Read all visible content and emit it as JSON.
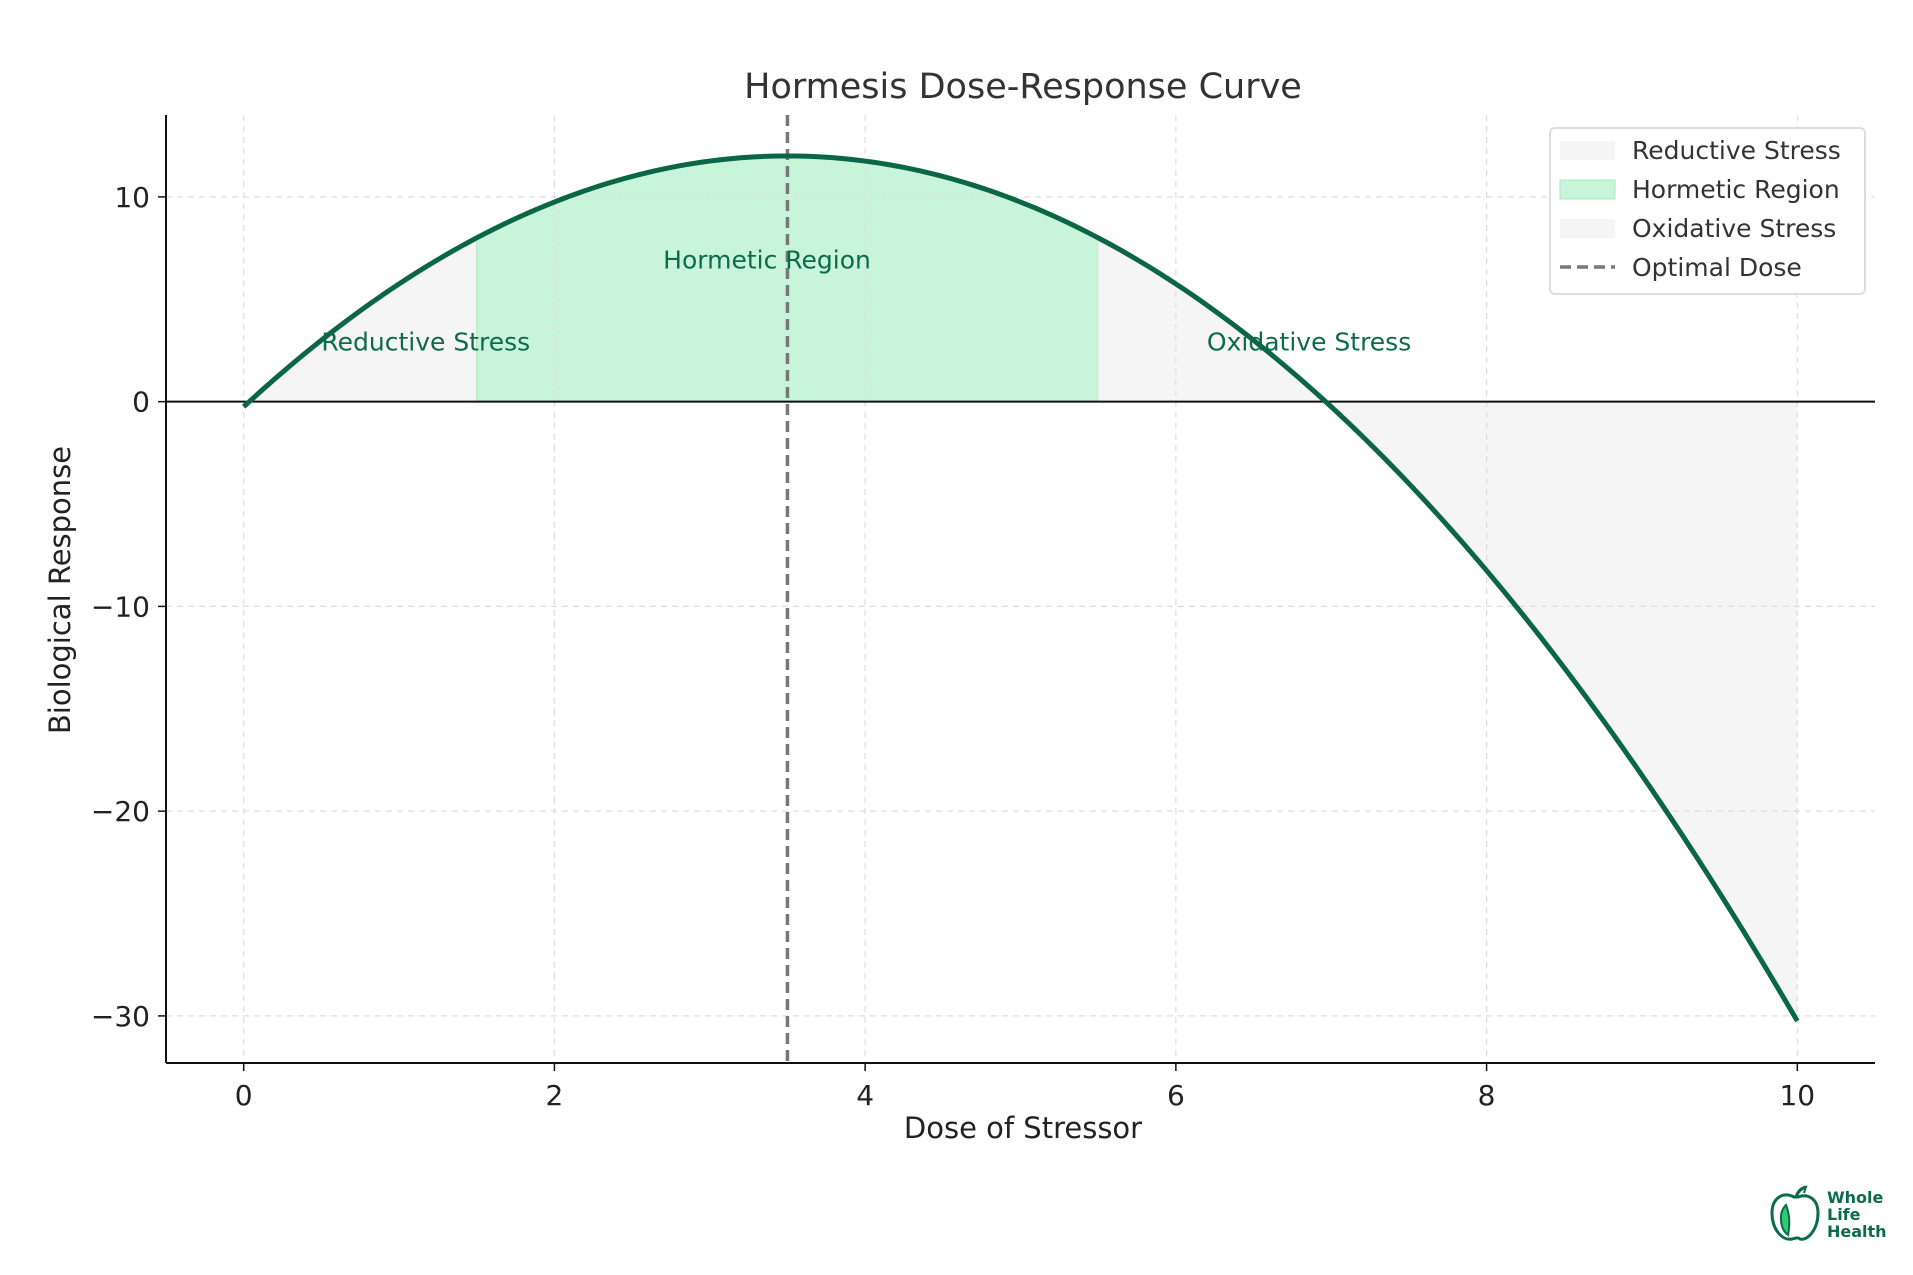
{
  "chart_data": {
    "type": "line",
    "title": "Hormesis Dose-Response Curve",
    "xlabel": "Dose of Stressor",
    "ylabel": "Biological Response",
    "xlim": [
      -0.5,
      10.5
    ],
    "ylim": [
      -32.3,
      14
    ],
    "xticks": [
      0,
      2,
      4,
      6,
      8,
      10
    ],
    "yticks": [
      -30,
      -20,
      -10,
      0,
      10
    ],
    "grid": true,
    "legend_position": "top-right",
    "curve": {
      "equation": "y = 12 - (x - 3.5)^2",
      "x": [
        0,
        0.5,
        1,
        1.5,
        2,
        2.5,
        3,
        3.5,
        4,
        4.5,
        5,
        5.5,
        6,
        6.5,
        7,
        7.5,
        8,
        8.5,
        9,
        9.5,
        10
      ],
      "y": [
        -0.25,
        3,
        5.75,
        8,
        9.75,
        11,
        11.75,
        12,
        11.75,
        11,
        9.75,
        8,
        5.75,
        3,
        -0.25,
        -4,
        -8.25,
        -13,
        -18.25,
        -24,
        -30.25
      ],
      "color": "#0b6647"
    },
    "regions": [
      {
        "name": "Reductive Stress",
        "x_range": [
          0,
          1.5
        ],
        "color": "#f5f5f5"
      },
      {
        "name": "Hormetic Region",
        "x_range": [
          1.5,
          5.5
        ],
        "color": "#c8f5d9"
      },
      {
        "name": "Oxidative Stress",
        "x_range": [
          5.5,
          10
        ],
        "color": "#f5f5f5"
      }
    ],
    "optimal_dose": {
      "name": "Optimal Dose",
      "x": 3.5,
      "color": "#777777"
    },
    "annotations": [
      {
        "text": "Reductive Stress",
        "x": 0.5,
        "y": 2.5
      },
      {
        "text": "Hormetic Region",
        "x": 2.7,
        "y": 6.5
      },
      {
        "text": "Oxidative Stress",
        "x": 6.2,
        "y": 2.5
      }
    ],
    "annotation_color": "#0b6b4a",
    "legend": [
      {
        "label": "Reductive Stress",
        "kind": "patch",
        "color": "#f5f5f5"
      },
      {
        "label": "Hormetic Region",
        "kind": "patch",
        "color": "#c8f5d9"
      },
      {
        "label": "Oxidative Stress",
        "kind": "patch",
        "color": "#f5f5f5"
      },
      {
        "label": "Optimal Dose",
        "kind": "dash",
        "color": "#777777"
      }
    ]
  },
  "logo": {
    "lines": [
      "Whole",
      "Life",
      "Health"
    ],
    "icon": "apple-leaf-icon",
    "color": "#0b6b4a"
  }
}
